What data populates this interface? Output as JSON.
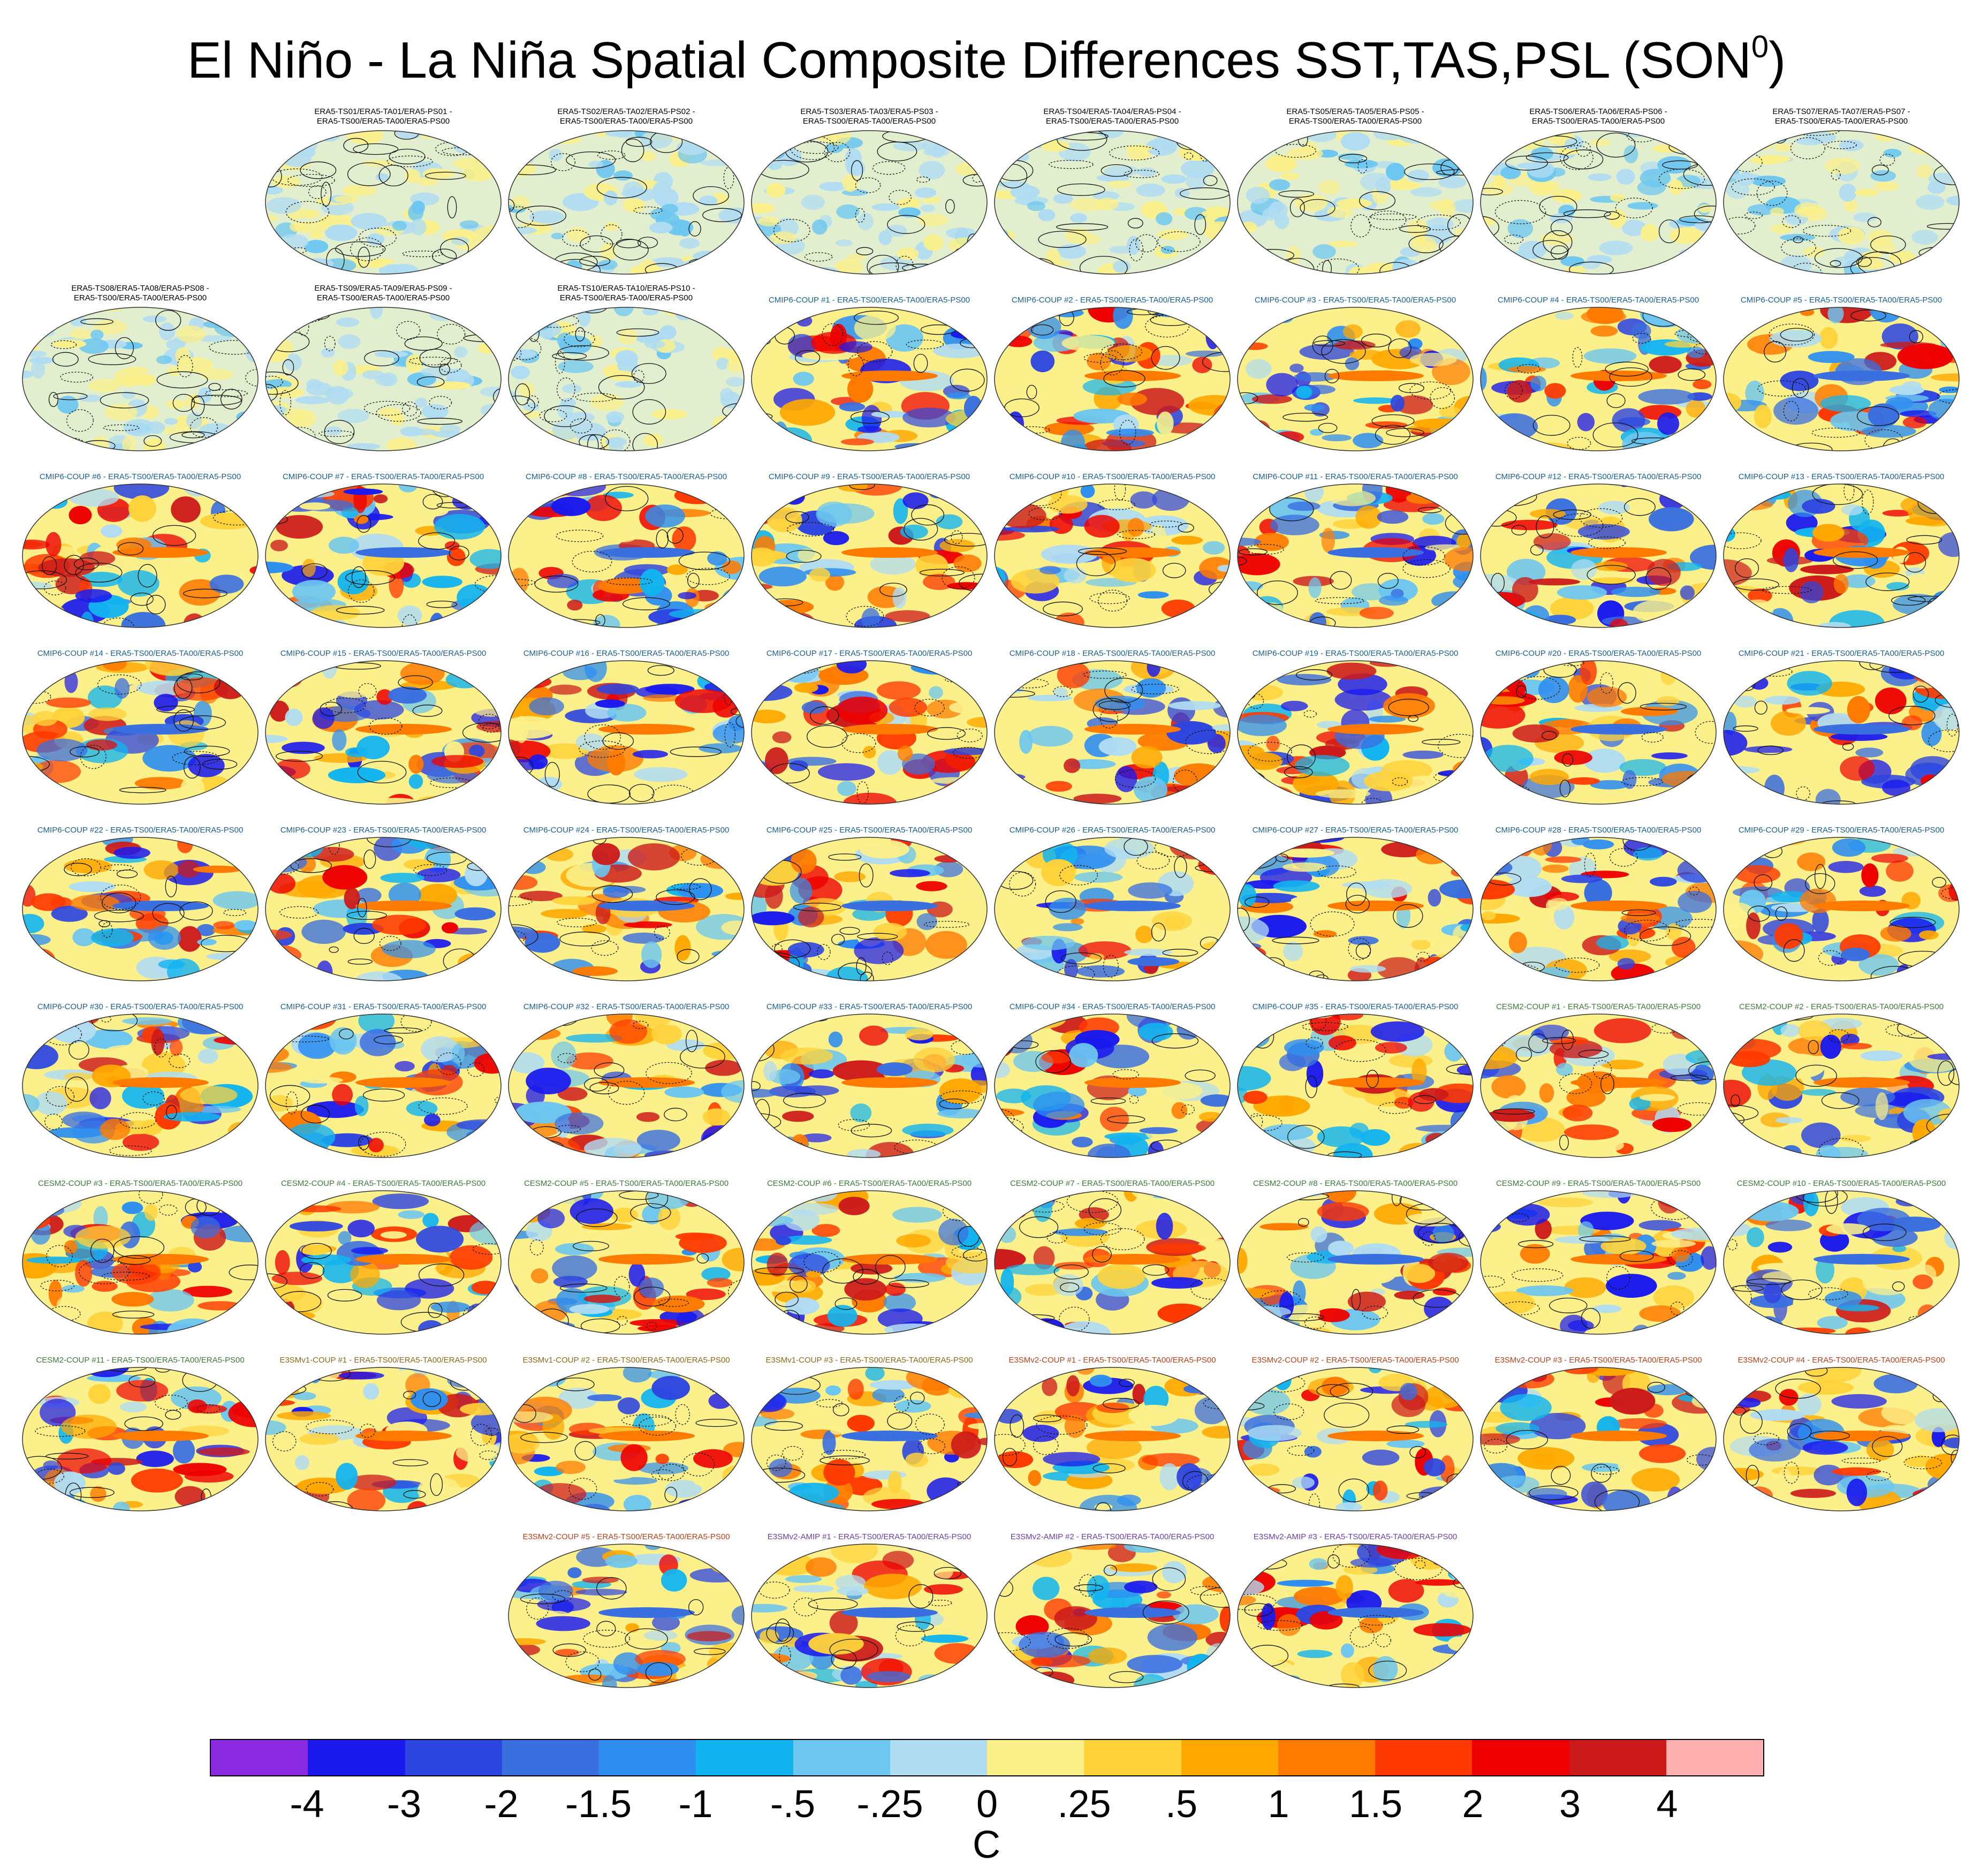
{
  "title": {
    "main": "El Niño - La Niña Spatial Composite Differences SST,TAS,PSL (SON",
    "superscript": "0",
    "close": ")"
  },
  "colors": {
    "cmip6": "#1a5f8f",
    "cesm2": "#3e7a3a",
    "e3smv1": "#8a6a1a",
    "e3smv2_coup": "#b5421a",
    "e3smv2_amip": "#6a3fa8",
    "obs": "#000000"
  },
  "panels": [
    {
      "label": "ERA5-TS01/ERA5-TA01/ERA5-PS01 -",
      "label2": "ERA5-TS00/ERA5-TA00/ERA5-PS00",
      "group": "obs"
    },
    {
      "label": "ERA5-TS02/ERA5-TA02/ERA5-PS02 -",
      "label2": "ERA5-TS00/ERA5-TA00/ERA5-PS00",
      "group": "obs"
    },
    {
      "label": "ERA5-TS03/ERA5-TA03/ERA5-PS03 -",
      "label2": "ERA5-TS00/ERA5-TA00/ERA5-PS00",
      "group": "obs"
    },
    {
      "label": "ERA5-TS04/ERA5-TA04/ERA5-PS04 -",
      "label2": "ERA5-TS00/ERA5-TA00/ERA5-PS00",
      "group": "obs"
    },
    {
      "label": "ERA5-TS05/ERA5-TA05/ERA5-PS05 -",
      "label2": "ERA5-TS00/ERA5-TA00/ERA5-PS00",
      "group": "obs"
    },
    {
      "label": "ERA5-TS06/ERA5-TA06/ERA5-PS06 -",
      "label2": "ERA5-TS00/ERA5-TA00/ERA5-PS00",
      "group": "obs"
    },
    {
      "label": "ERA5-TS07/ERA5-TA07/ERA5-PS07 -",
      "label2": "ERA5-TS00/ERA5-TA00/ERA5-PS00",
      "group": "obs"
    },
    {
      "label": "ERA5-TS08/ERA5-TA08/ERA5-PS08 -",
      "label2": "ERA5-TS00/ERA5-TA00/ERA5-PS00",
      "group": "obs"
    },
    {
      "label": "ERA5-TS09/ERA5-TA09/ERA5-PS09 -",
      "label2": "ERA5-TS00/ERA5-TA00/ERA5-PS00",
      "group": "obs"
    },
    {
      "label": "ERA5-TS10/ERA5-TA10/ERA5-PS10 -",
      "label2": "ERA5-TS00/ERA5-TA00/ERA5-PS00",
      "group": "obs"
    },
    {
      "label": "CMIP6-COUP  #1 - ERA5-TS00/ERA5-TA00/ERA5-PS00",
      "group": "cmip6"
    },
    {
      "label": "CMIP6-COUP  #2 - ERA5-TS00/ERA5-TA00/ERA5-PS00",
      "group": "cmip6"
    },
    {
      "label": "CMIP6-COUP  #3 - ERA5-TS00/ERA5-TA00/ERA5-PS00",
      "group": "cmip6"
    },
    {
      "label": "CMIP6-COUP  #4 - ERA5-TS00/ERA5-TA00/ERA5-PS00",
      "group": "cmip6"
    },
    {
      "label": "CMIP6-COUP  #5 - ERA5-TS00/ERA5-TA00/ERA5-PS00",
      "group": "cmip6"
    },
    {
      "label": "CMIP6-COUP  #6 - ERA5-TS00/ERA5-TA00/ERA5-PS00",
      "group": "cmip6"
    },
    {
      "label": "CMIP6-COUP  #7 - ERA5-TS00/ERA5-TA00/ERA5-PS00",
      "group": "cmip6"
    },
    {
      "label": "CMIP6-COUP  #8 - ERA5-TS00/ERA5-TA00/ERA5-PS00",
      "group": "cmip6"
    },
    {
      "label": "CMIP6-COUP  #9 - ERA5-TS00/ERA5-TA00/ERA5-PS00",
      "group": "cmip6"
    },
    {
      "label": "CMIP6-COUP  #10 - ERA5-TS00/ERA5-TA00/ERA5-PS00",
      "group": "cmip6"
    },
    {
      "label": "CMIP6-COUP  #11 - ERA5-TS00/ERA5-TA00/ERA5-PS00",
      "group": "cmip6"
    },
    {
      "label": "CMIP6-COUP  #12 - ERA5-TS00/ERA5-TA00/ERA5-PS00",
      "group": "cmip6"
    },
    {
      "label": "CMIP6-COUP  #13 - ERA5-TS00/ERA5-TA00/ERA5-PS00",
      "group": "cmip6"
    },
    {
      "label": "CMIP6-COUP  #14 - ERA5-TS00/ERA5-TA00/ERA5-PS00",
      "group": "cmip6"
    },
    {
      "label": "CMIP6-COUP  #15 - ERA5-TS00/ERA5-TA00/ERA5-PS00",
      "group": "cmip6"
    },
    {
      "label": "CMIP6-COUP  #16 - ERA5-TS00/ERA5-TA00/ERA5-PS00",
      "group": "cmip6"
    },
    {
      "label": "CMIP6-COUP  #17 - ERA5-TS00/ERA5-TA00/ERA5-PS00",
      "group": "cmip6"
    },
    {
      "label": "CMIP6-COUP  #18 - ERA5-TS00/ERA5-TA00/ERA5-PS00",
      "group": "cmip6"
    },
    {
      "label": "CMIP6-COUP  #19 - ERA5-TS00/ERA5-TA00/ERA5-PS00",
      "group": "cmip6"
    },
    {
      "label": "CMIP6-COUP  #20 - ERA5-TS00/ERA5-TA00/ERA5-PS00",
      "group": "cmip6"
    },
    {
      "label": "CMIP6-COUP  #21 - ERA5-TS00/ERA5-TA00/ERA5-PS00",
      "group": "cmip6"
    },
    {
      "label": "CMIP6-COUP  #22 - ERA5-TS00/ERA5-TA00/ERA5-PS00",
      "group": "cmip6"
    },
    {
      "label": "CMIP6-COUP  #23 - ERA5-TS00/ERA5-TA00/ERA5-PS00",
      "group": "cmip6"
    },
    {
      "label": "CMIP6-COUP  #24 - ERA5-TS00/ERA5-TA00/ERA5-PS00",
      "group": "cmip6"
    },
    {
      "label": "CMIP6-COUP  #25 - ERA5-TS00/ERA5-TA00/ERA5-PS00",
      "group": "cmip6"
    },
    {
      "label": "CMIP6-COUP  #26 - ERA5-TS00/ERA5-TA00/ERA5-PS00",
      "group": "cmip6"
    },
    {
      "label": "CMIP6-COUP  #27 - ERA5-TS00/ERA5-TA00/ERA5-PS00",
      "group": "cmip6"
    },
    {
      "label": "CMIP6-COUP  #28 - ERA5-TS00/ERA5-TA00/ERA5-PS00",
      "group": "cmip6"
    },
    {
      "label": "CMIP6-COUP  #29 - ERA5-TS00/ERA5-TA00/ERA5-PS00",
      "group": "cmip6"
    },
    {
      "label": "CMIP6-COUP  #30 - ERA5-TS00/ERA5-TA00/ERA5-PS00",
      "group": "cmip6"
    },
    {
      "label": "CMIP6-COUP  #31 - ERA5-TS00/ERA5-TA00/ERA5-PS00",
      "group": "cmip6"
    },
    {
      "label": "CMIP6-COUP  #32 - ERA5-TS00/ERA5-TA00/ERA5-PS00",
      "group": "cmip6"
    },
    {
      "label": "CMIP6-COUP  #33 - ERA5-TS00/ERA5-TA00/ERA5-PS00",
      "group": "cmip6"
    },
    {
      "label": "CMIP6-COUP  #34 - ERA5-TS00/ERA5-TA00/ERA5-PS00",
      "group": "cmip6"
    },
    {
      "label": "CMIP6-COUP  #35 - ERA5-TS00/ERA5-TA00/ERA5-PS00",
      "group": "cmip6"
    },
    {
      "label": "CESM2-COUP  #1 - ERA5-TS00/ERA5-TA00/ERA5-PS00",
      "group": "cesm2"
    },
    {
      "label": "CESM2-COUP  #2 - ERA5-TS00/ERA5-TA00/ERA5-PS00",
      "group": "cesm2"
    },
    {
      "label": "CESM2-COUP  #3 - ERA5-TS00/ERA5-TA00/ERA5-PS00",
      "group": "cesm2"
    },
    {
      "label": "CESM2-COUP  #4 - ERA5-TS00/ERA5-TA00/ERA5-PS00",
      "group": "cesm2"
    },
    {
      "label": "CESM2-COUP  #5 - ERA5-TS00/ERA5-TA00/ERA5-PS00",
      "group": "cesm2"
    },
    {
      "label": "CESM2-COUP  #6 - ERA5-TS00/ERA5-TA00/ERA5-PS00",
      "group": "cesm2"
    },
    {
      "label": "CESM2-COUP  #7 - ERA5-TS00/ERA5-TA00/ERA5-PS00",
      "group": "cesm2"
    },
    {
      "label": "CESM2-COUP  #8 - ERA5-TS00/ERA5-TA00/ERA5-PS00",
      "group": "cesm2"
    },
    {
      "label": "CESM2-COUP  #9 - ERA5-TS00/ERA5-TA00/ERA5-PS00",
      "group": "cesm2"
    },
    {
      "label": "CESM2-COUP  #10 - ERA5-TS00/ERA5-TA00/ERA5-PS00",
      "group": "cesm2"
    },
    {
      "label": "CESM2-COUP  #11 - ERA5-TS00/ERA5-TA00/ERA5-PS00",
      "group": "cesm2"
    },
    {
      "label": "E3SMv1-COUP #1 - ERA5-TS00/ERA5-TA00/ERA5-PS00",
      "group": "e3smv1"
    },
    {
      "label": "E3SMv1-COUP #2 - ERA5-TS00/ERA5-TA00/ERA5-PS00",
      "group": "e3smv1"
    },
    {
      "label": "E3SMv1-COUP #3 - ERA5-TS00/ERA5-TA00/ERA5-PS00",
      "group": "e3smv1"
    },
    {
      "label": "E3SMv2-COUP #1 - ERA5-TS00/ERA5-TA00/ERA5-PS00",
      "group": "e3smv2_coup"
    },
    {
      "label": "E3SMv2-COUP #2 - ERA5-TS00/ERA5-TA00/ERA5-PS00",
      "group": "e3smv2_coup"
    },
    {
      "label": "E3SMv2-COUP #3 - ERA5-TS00/ERA5-TA00/ERA5-PS00",
      "group": "e3smv2_coup"
    },
    {
      "label": "E3SMv2-COUP #4 - ERA5-TS00/ERA5-TA00/ERA5-PS00",
      "group": "e3smv2_coup"
    },
    {
      "label": "E3SMv2-COUP #5 - ERA5-TS00/ERA5-TA00/ERA5-PS00",
      "group": "e3smv2_coup"
    },
    {
      "label": "E3SMv2-AMIP #1 - ERA5-TS00/ERA5-TA00/ERA5-PS00",
      "group": "e3smv2_amip"
    },
    {
      "label": "E3SMv2-AMIP #2 - ERA5-TS00/ERA5-TA00/ERA5-PS00",
      "group": "e3smv2_amip"
    },
    {
      "label": "E3SMv2-AMIP #3 - ERA5-TS00/ERA5-TA00/ERA5-PS00",
      "group": "e3smv2_amip"
    }
  ],
  "colorbar": {
    "units": "C",
    "labels": [
      "-4",
      "-3",
      "-2",
      "-1.5",
      "-1",
      "-.5",
      "-.25",
      "0",
      ".25",
      ".5",
      "1",
      "1.5",
      "2",
      "3",
      "4"
    ],
    "colors": [
      "#8a2be2",
      "#1a1aee",
      "#2e46e0",
      "#3a6fe0",
      "#2f8ff0",
      "#12b4f0",
      "#6cc6f0",
      "#b0dcf2",
      "#fbf08a",
      "#ffd23a",
      "#ffa800",
      "#ff7a00",
      "#ff3a00",
      "#ee0000",
      "#cc1a1a",
      "#ffb0b0"
    ]
  }
}
